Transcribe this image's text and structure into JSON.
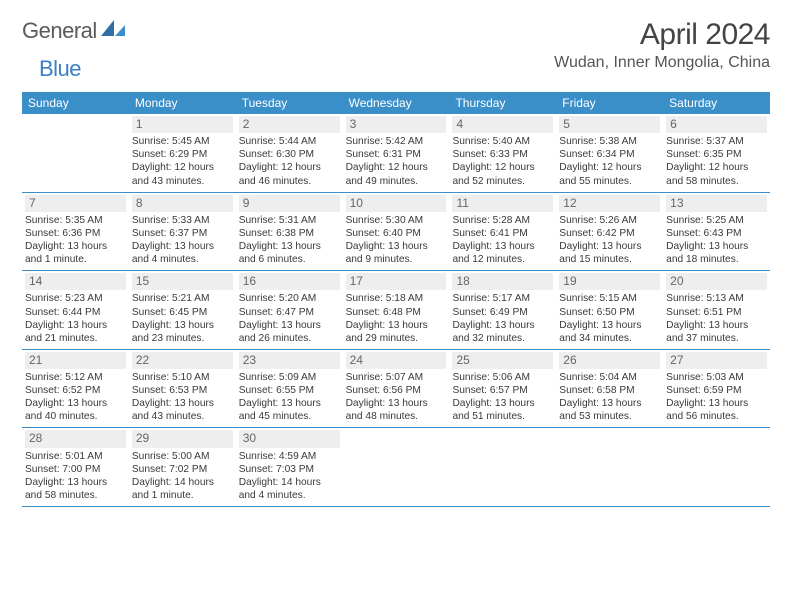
{
  "brand": {
    "part1": "General",
    "part2": "Blue"
  },
  "title": "April 2024",
  "location": "Wudan, Inner Mongolia, China",
  "colors": {
    "header_bg": "#3b8fc9",
    "daynum_bg": "#eeeeee",
    "border": "#3b8fc9"
  },
  "dow": [
    "Sunday",
    "Monday",
    "Tuesday",
    "Wednesday",
    "Thursday",
    "Friday",
    "Saturday"
  ],
  "weeks": [
    [
      null,
      {
        "n": "1",
        "sr": "Sunrise: 5:45 AM",
        "ss": "Sunset: 6:29 PM",
        "dl1": "Daylight: 12 hours",
        "dl2": "and 43 minutes."
      },
      {
        "n": "2",
        "sr": "Sunrise: 5:44 AM",
        "ss": "Sunset: 6:30 PM",
        "dl1": "Daylight: 12 hours",
        "dl2": "and 46 minutes."
      },
      {
        "n": "3",
        "sr": "Sunrise: 5:42 AM",
        "ss": "Sunset: 6:31 PM",
        "dl1": "Daylight: 12 hours",
        "dl2": "and 49 minutes."
      },
      {
        "n": "4",
        "sr": "Sunrise: 5:40 AM",
        "ss": "Sunset: 6:33 PM",
        "dl1": "Daylight: 12 hours",
        "dl2": "and 52 minutes."
      },
      {
        "n": "5",
        "sr": "Sunrise: 5:38 AM",
        "ss": "Sunset: 6:34 PM",
        "dl1": "Daylight: 12 hours",
        "dl2": "and 55 minutes."
      },
      {
        "n": "6",
        "sr": "Sunrise: 5:37 AM",
        "ss": "Sunset: 6:35 PM",
        "dl1": "Daylight: 12 hours",
        "dl2": "and 58 minutes."
      }
    ],
    [
      {
        "n": "7",
        "sr": "Sunrise: 5:35 AM",
        "ss": "Sunset: 6:36 PM",
        "dl1": "Daylight: 13 hours",
        "dl2": "and 1 minute."
      },
      {
        "n": "8",
        "sr": "Sunrise: 5:33 AM",
        "ss": "Sunset: 6:37 PM",
        "dl1": "Daylight: 13 hours",
        "dl2": "and 4 minutes."
      },
      {
        "n": "9",
        "sr": "Sunrise: 5:31 AM",
        "ss": "Sunset: 6:38 PM",
        "dl1": "Daylight: 13 hours",
        "dl2": "and 6 minutes."
      },
      {
        "n": "10",
        "sr": "Sunrise: 5:30 AM",
        "ss": "Sunset: 6:40 PM",
        "dl1": "Daylight: 13 hours",
        "dl2": "and 9 minutes."
      },
      {
        "n": "11",
        "sr": "Sunrise: 5:28 AM",
        "ss": "Sunset: 6:41 PM",
        "dl1": "Daylight: 13 hours",
        "dl2": "and 12 minutes."
      },
      {
        "n": "12",
        "sr": "Sunrise: 5:26 AM",
        "ss": "Sunset: 6:42 PM",
        "dl1": "Daylight: 13 hours",
        "dl2": "and 15 minutes."
      },
      {
        "n": "13",
        "sr": "Sunrise: 5:25 AM",
        "ss": "Sunset: 6:43 PM",
        "dl1": "Daylight: 13 hours",
        "dl2": "and 18 minutes."
      }
    ],
    [
      {
        "n": "14",
        "sr": "Sunrise: 5:23 AM",
        "ss": "Sunset: 6:44 PM",
        "dl1": "Daylight: 13 hours",
        "dl2": "and 21 minutes."
      },
      {
        "n": "15",
        "sr": "Sunrise: 5:21 AM",
        "ss": "Sunset: 6:45 PM",
        "dl1": "Daylight: 13 hours",
        "dl2": "and 23 minutes."
      },
      {
        "n": "16",
        "sr": "Sunrise: 5:20 AM",
        "ss": "Sunset: 6:47 PM",
        "dl1": "Daylight: 13 hours",
        "dl2": "and 26 minutes."
      },
      {
        "n": "17",
        "sr": "Sunrise: 5:18 AM",
        "ss": "Sunset: 6:48 PM",
        "dl1": "Daylight: 13 hours",
        "dl2": "and 29 minutes."
      },
      {
        "n": "18",
        "sr": "Sunrise: 5:17 AM",
        "ss": "Sunset: 6:49 PM",
        "dl1": "Daylight: 13 hours",
        "dl2": "and 32 minutes."
      },
      {
        "n": "19",
        "sr": "Sunrise: 5:15 AM",
        "ss": "Sunset: 6:50 PM",
        "dl1": "Daylight: 13 hours",
        "dl2": "and 34 minutes."
      },
      {
        "n": "20",
        "sr": "Sunrise: 5:13 AM",
        "ss": "Sunset: 6:51 PM",
        "dl1": "Daylight: 13 hours",
        "dl2": "and 37 minutes."
      }
    ],
    [
      {
        "n": "21",
        "sr": "Sunrise: 5:12 AM",
        "ss": "Sunset: 6:52 PM",
        "dl1": "Daylight: 13 hours",
        "dl2": "and 40 minutes."
      },
      {
        "n": "22",
        "sr": "Sunrise: 5:10 AM",
        "ss": "Sunset: 6:53 PM",
        "dl1": "Daylight: 13 hours",
        "dl2": "and 43 minutes."
      },
      {
        "n": "23",
        "sr": "Sunrise: 5:09 AM",
        "ss": "Sunset: 6:55 PM",
        "dl1": "Daylight: 13 hours",
        "dl2": "and 45 minutes."
      },
      {
        "n": "24",
        "sr": "Sunrise: 5:07 AM",
        "ss": "Sunset: 6:56 PM",
        "dl1": "Daylight: 13 hours",
        "dl2": "and 48 minutes."
      },
      {
        "n": "25",
        "sr": "Sunrise: 5:06 AM",
        "ss": "Sunset: 6:57 PM",
        "dl1": "Daylight: 13 hours",
        "dl2": "and 51 minutes."
      },
      {
        "n": "26",
        "sr": "Sunrise: 5:04 AM",
        "ss": "Sunset: 6:58 PM",
        "dl1": "Daylight: 13 hours",
        "dl2": "and 53 minutes."
      },
      {
        "n": "27",
        "sr": "Sunrise: 5:03 AM",
        "ss": "Sunset: 6:59 PM",
        "dl1": "Daylight: 13 hours",
        "dl2": "and 56 minutes."
      }
    ],
    [
      {
        "n": "28",
        "sr": "Sunrise: 5:01 AM",
        "ss": "Sunset: 7:00 PM",
        "dl1": "Daylight: 13 hours",
        "dl2": "and 58 minutes."
      },
      {
        "n": "29",
        "sr": "Sunrise: 5:00 AM",
        "ss": "Sunset: 7:02 PM",
        "dl1": "Daylight: 14 hours",
        "dl2": "and 1 minute."
      },
      {
        "n": "30",
        "sr": "Sunrise: 4:59 AM",
        "ss": "Sunset: 7:03 PM",
        "dl1": "Daylight: 14 hours",
        "dl2": "and 4 minutes."
      },
      null,
      null,
      null,
      null
    ]
  ]
}
